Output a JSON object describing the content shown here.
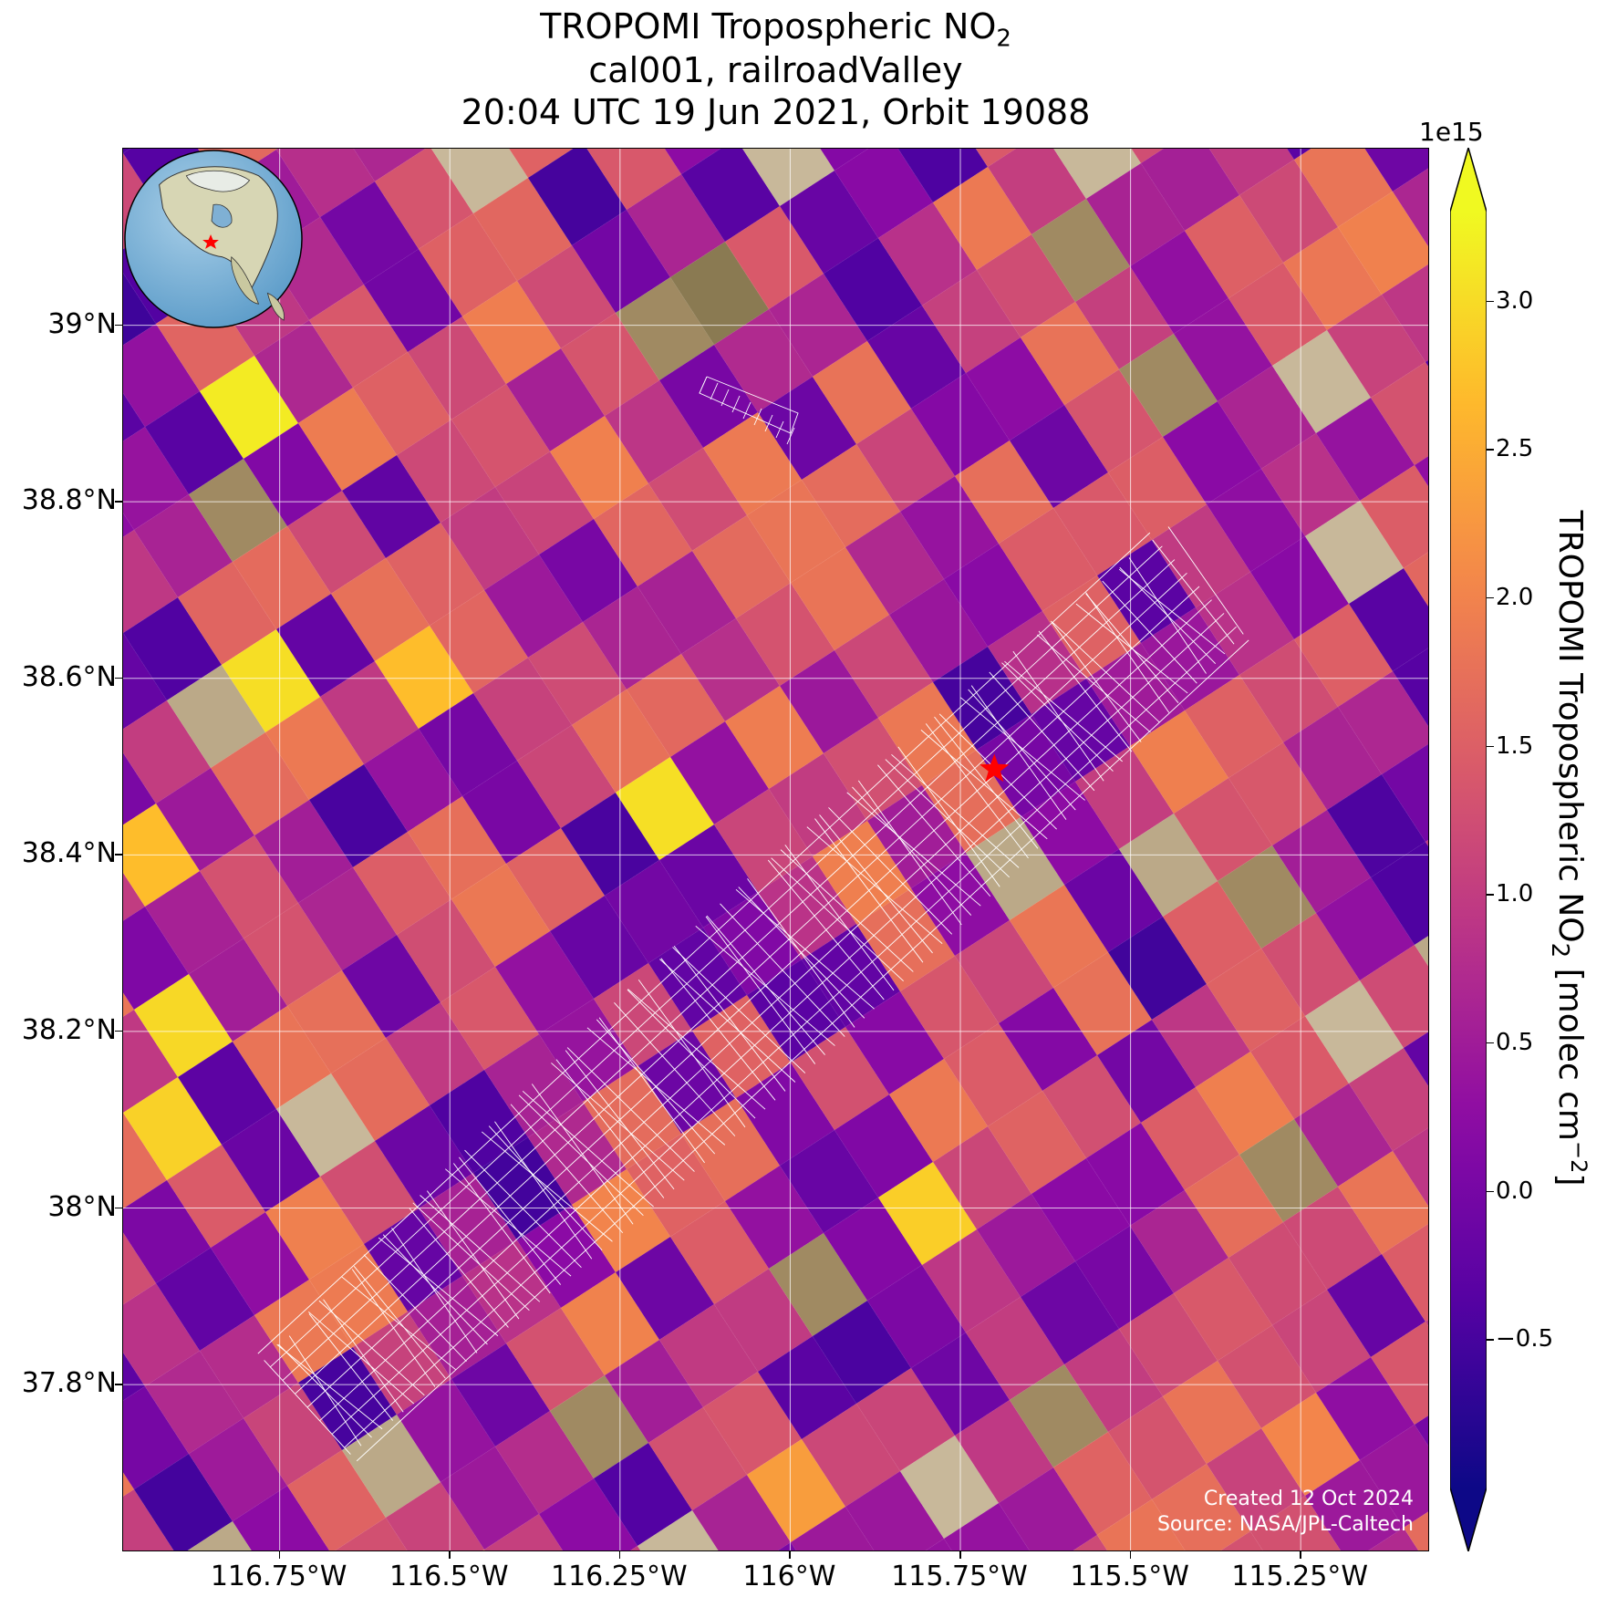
{
  "title": {
    "line1_main": "TROPOMI Tropospheric NO",
    "line1_sub": "2",
    "line2": "cal001, railroadValley",
    "line3": "20:04 UTC 19 Jun 2021, Orbit 19088"
  },
  "map": {
    "lon_range": [
      -116.98,
      -115.06
    ],
    "lat_range": [
      37.61,
      39.2
    ],
    "x_ticks": [
      "116.75°W",
      "116.5°W",
      "116.25°W",
      "116°W",
      "115.75°W",
      "115.5°W",
      "115.25°W"
    ],
    "x_tick_values": [
      -116.75,
      -116.5,
      -116.25,
      -116.0,
      -115.75,
      -115.5,
      -115.25
    ],
    "y_ticks": [
      "39°N",
      "38.8°N",
      "38.6°N",
      "38.4°N",
      "38.2°N",
      "38°N",
      "37.8°N"
    ],
    "y_tick_values": [
      39.0,
      38.8,
      38.6,
      38.4,
      38.2,
      38.0,
      37.8
    ],
    "site_marker": {
      "lon": -115.7,
      "lat": 38.497,
      "color": "#ff0000",
      "icon": "star-icon"
    },
    "footprint_color": "#ffffff",
    "gridline_color": "#ffffff"
  },
  "credit": {
    "line1": "Created 12 Oct 2024",
    "line2": "Source: NASA/JPL-Caltech"
  },
  "colorbar": {
    "colormap": "plasma",
    "range": [
      -1.0,
      3.3
    ],
    "exponent_label": "1e15",
    "label_main": "TROPOMI Tropospheric NO",
    "label_sub": "2",
    "label_unit": " [molec cm",
    "label_sup": "−2",
    "label_end": "]",
    "ticks": [
      "3.0",
      "2.5",
      "2.0",
      "1.5",
      "1.0",
      "0.5",
      "0.0",
      "−0.5"
    ],
    "tick_values": [
      3.0,
      2.5,
      2.0,
      1.5,
      1.0,
      0.5,
      0.0,
      -0.5
    ],
    "extend": "both"
  },
  "inset": {
    "icon": "globe-icon",
    "marker_color": "#ff0000"
  }
}
